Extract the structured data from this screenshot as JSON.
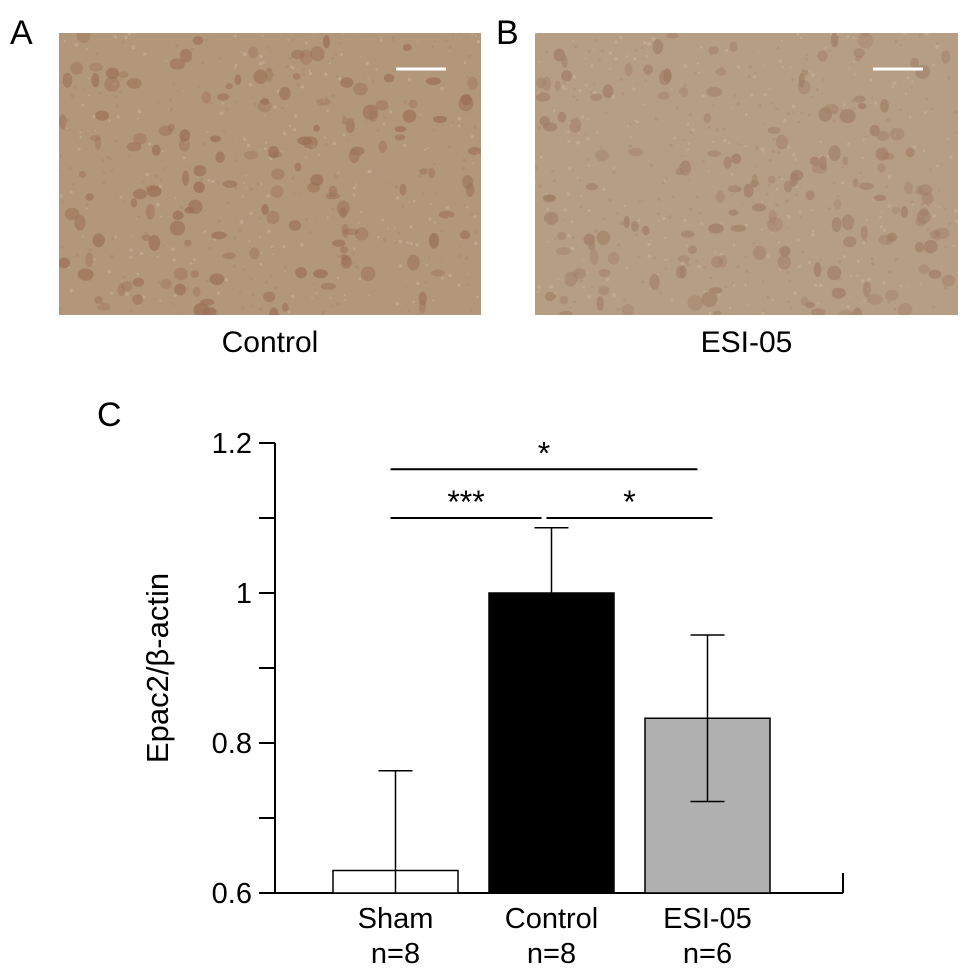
{
  "panels": {
    "a": {
      "letter": "A",
      "caption": "Control",
      "tint": "#b3977b",
      "cell_color": "#9a6f55",
      "cell_count": 150,
      "seed": 7
    },
    "b": {
      "letter": "B",
      "caption": "ESI-05",
      "tint": "#b69e84",
      "cell_color": "#a07e64",
      "cell_count": 160,
      "seed": 23
    },
    "c": {
      "letter": "C"
    }
  },
  "chart_data": {
    "type": "bar",
    "ylabel": "Epac2/β-actin",
    "ylim": [
      0.6,
      1.2
    ],
    "yticks": [
      0.6,
      0.8,
      1,
      1.2
    ],
    "ytick_labels": [
      "0.6",
      "0.8",
      "1",
      "1.2"
    ],
    "categories": [
      "Sham",
      "Control",
      "ESI-05"
    ],
    "n_labels": [
      "n=8",
      "n=8",
      "n=6"
    ],
    "values": [
      0.63,
      1.0,
      0.833
    ],
    "errors": [
      0.133,
      0.087,
      0.111
    ],
    "colors": [
      "#ffffff",
      "#000000",
      "#b0b0b0"
    ],
    "significance": [
      {
        "from": 0,
        "to": 1,
        "label": "***",
        "level": 1.1
      },
      {
        "from": 1,
        "to": 2,
        "label": "*",
        "level": 1.1
      },
      {
        "from": 0,
        "to": 2,
        "label": "*",
        "level": 1.165
      }
    ]
  }
}
